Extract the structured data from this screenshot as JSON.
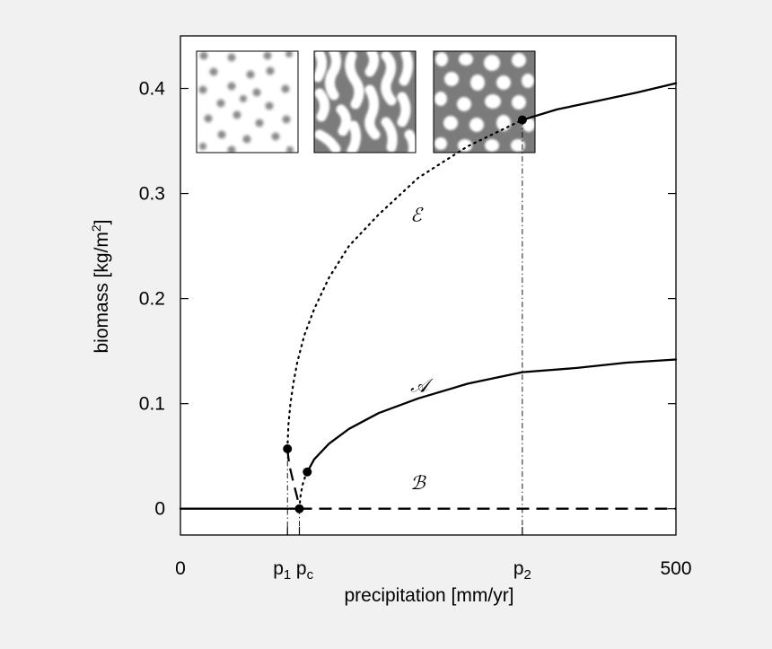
{
  "chart_data": {
    "type": "line",
    "title": "",
    "xlabel": "precipitation [mm/yr]",
    "ylabel_main": "biomass [kg/m",
    "ylabel_sup": "2",
    "ylabel_close": "]",
    "xlim": [
      0,
      500
    ],
    "ylim": [
      -0.025,
      0.45
    ],
    "x_ticks": [
      {
        "x": 0,
        "label": "0"
      },
      {
        "x": 500,
        "label": "500"
      }
    ],
    "x_special_ticks": [
      {
        "x": 108,
        "base": "p",
        "sub": "1"
      },
      {
        "x": 120,
        "base": "p",
        "sub": "c"
      },
      {
        "x": 345,
        "base": "p",
        "sub": "2"
      }
    ],
    "y_ticks": [
      {
        "y": 0,
        "label": "0"
      },
      {
        "y": 0.1,
        "label": "0.1"
      },
      {
        "y": 0.2,
        "label": "0.2"
      },
      {
        "y": 0.3,
        "label": "0.3"
      },
      {
        "y": 0.4,
        "label": "0.4"
      }
    ],
    "grid": false,
    "series": [
      {
        "key": "bare_stable",
        "style": "solid",
        "x": [
          0,
          120
        ],
        "y": [
          0,
          0
        ]
      },
      {
        "key": "bare_unstable",
        "style": "dashed",
        "x": [
          120,
          500
        ],
        "y": [
          0,
          0
        ]
      },
      {
        "key": "spots_unstable",
        "style": "dashed",
        "x": [
          108,
          109,
          111,
          114,
          118,
          120
        ],
        "y": [
          0.057,
          0.048,
          0.037,
          0.025,
          0.01,
          0.0
        ]
      },
      {
        "key": "spots_A_unstable",
        "style": "dotted",
        "x": [
          120,
          121,
          123,
          126,
          128
        ],
        "y": [
          0.0,
          0.011,
          0.022,
          0.031,
          0.035
        ]
      },
      {
        "key": "spots_A_stable",
        "style": "solid",
        "x": [
          128,
          135,
          150,
          170,
          200,
          240,
          290,
          345,
          400,
          450,
          500
        ],
        "y": [
          0.035,
          0.047,
          0.062,
          0.076,
          0.091,
          0.105,
          0.119,
          0.13,
          0.134,
          0.139,
          0.142
        ]
      },
      {
        "key": "labyrinth_E_unstable",
        "style": "dotted",
        "x": [
          108,
          109,
          111,
          114,
          118,
          125,
          135,
          150,
          170,
          200,
          240,
          290,
          345
        ],
        "y": [
          0.057,
          0.08,
          0.1,
          0.12,
          0.14,
          0.165,
          0.19,
          0.22,
          0.25,
          0.28,
          0.315,
          0.345,
          0.37
        ]
      },
      {
        "key": "labyrinth_E_stable",
        "style": "solid",
        "x": [
          345,
          380,
          420,
          460,
          500
        ],
        "y": [
          0.37,
          0.38,
          0.388,
          0.396,
          0.405
        ]
      }
    ],
    "markers": [
      {
        "x": 108,
        "y": 0.057
      },
      {
        "x": 120,
        "y": 0.0
      },
      {
        "x": 128,
        "y": 0.035
      },
      {
        "x": 345,
        "y": 0.37
      }
    ],
    "guide_lines": [
      {
        "x": 108,
        "y_top": 0.057
      },
      {
        "x": 120,
        "y_top": 0.0
      },
      {
        "x": 345,
        "y_top": 0.37
      }
    ],
    "branch_labels": [
      {
        "text": "ℰ",
        "x": 232,
        "y": 0.27
      },
      {
        "text": "𝒜",
        "x": 232,
        "y": 0.108
      },
      {
        "text": "ℬ",
        "x": 232,
        "y": 0.015
      }
    ],
    "insets": [
      "spots",
      "labyrinth",
      "holes"
    ],
    "colors": {
      "background": "#f1f1f1",
      "plot_background": "#ffffff",
      "line": "#000000",
      "inset_vegetation": "#7b7b7b",
      "inset_bare": "#ffffff"
    }
  }
}
